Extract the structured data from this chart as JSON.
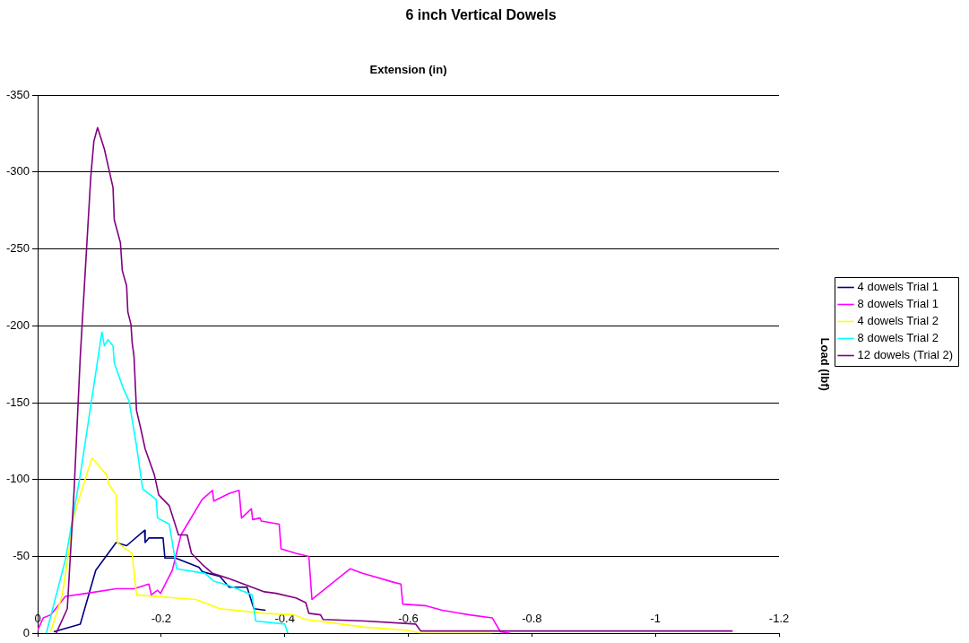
{
  "chart_data": {
    "type": "line",
    "title": "6 inch Vertical Dowels",
    "xlabel": "Extension (in)",
    "ylabel": "Load (lbf)",
    "xlim": [
      0,
      -1.2
    ],
    "xticks": [
      0,
      -0.2,
      -0.4,
      -0.6,
      -0.8,
      -1,
      -1.2
    ],
    "ylim": [
      0,
      -350
    ],
    "yticks": [
      0,
      -50,
      -100,
      -150,
      -200,
      -250,
      -300,
      -350
    ],
    "grid": "y",
    "legend": "right",
    "marker": "none",
    "line_style": "solid",
    "series": [
      {
        "name": "4 dowels Trial 1",
        "color": "#000080",
        "x": [
          -0.026,
          -0.069,
          -0.094,
          -0.127,
          -0.144,
          -0.173,
          -0.174,
          -0.18,
          -0.203,
          -0.206,
          -0.223,
          -0.261,
          -0.267,
          -0.295,
          -0.31,
          -0.339,
          -0.35,
          -0.369
        ],
        "values": [
          -1,
          -6,
          -41,
          -59,
          -57,
          -67,
          -59,
          -62,
          -62,
          -49,
          -49,
          -43,
          -40,
          -37,
          -30,
          -30,
          -16,
          -15
        ]
      },
      {
        "name": "8 dowels Trial 1",
        "color": "#ff00ff",
        "x": [
          0,
          -0.009,
          -0.021,
          -0.045,
          -0.079,
          -0.127,
          -0.156,
          -0.18,
          -0.184,
          -0.194,
          -0.199,
          -0.218,
          -0.232,
          -0.266,
          -0.283,
          -0.285,
          -0.31,
          -0.326,
          -0.33,
          -0.346,
          -0.348,
          -0.36,
          -0.362,
          -0.391,
          -0.394,
          -0.418,
          -0.439,
          -0.444,
          -0.506,
          -0.526,
          -0.578,
          -0.588,
          -0.591,
          -0.627,
          -0.655,
          -0.699,
          -0.736,
          -0.749,
          -0.765
        ],
        "values": [
          -2,
          -10,
          -12,
          -24,
          -26,
          -29,
          -29,
          -32,
          -25,
          -28,
          -26,
          -41,
          -64,
          -87,
          -93,
          -86,
          -91,
          -93,
          -75,
          -81,
          -74,
          -75,
          -73,
          -71,
          -55,
          -52,
          -50,
          -22,
          -42,
          -39,
          -33,
          -32,
          -19,
          -18,
          -15,
          -12,
          -10,
          -1,
          0
        ]
      },
      {
        "name": "4 dowels Trial 2",
        "color": "#ffff00",
        "x": [
          -0.021,
          -0.04,
          -0.059,
          -0.079,
          -0.088,
          -0.112,
          -0.115,
          -0.127,
          -0.129,
          -0.153,
          -0.16,
          -0.223,
          -0.256,
          -0.295,
          -0.367,
          -0.415,
          -0.434,
          -0.53,
          -0.598,
          -0.621,
          -0.736
        ],
        "values": [
          -1,
          -25,
          -77,
          -103,
          -114,
          -103,
          -97,
          -90,
          -59,
          -52,
          -25,
          -23,
          -22,
          -16,
          -13,
          -12,
          -9,
          -4,
          -2,
          0,
          0
        ]
      },
      {
        "name": "8 dowels Trial 2",
        "color": "#00ffff",
        "x": [
          -0.014,
          -0.045,
          -0.069,
          -0.098,
          -0.104,
          -0.108,
          -0.114,
          -0.122,
          -0.124,
          -0.138,
          -0.148,
          -0.16,
          -0.17,
          -0.192,
          -0.194,
          -0.213,
          -0.225,
          -0.271,
          -0.285,
          -0.31,
          -0.347,
          -0.353,
          -0.4,
          -0.405
        ],
        "values": [
          0,
          -48,
          -103,
          -180,
          -196,
          -187,
          -191,
          -187,
          -176,
          -160,
          -151,
          -122,
          -94,
          -87,
          -75,
          -71,
          -42,
          -39,
          -34,
          -31,
          -25,
          -8,
          -6,
          0
        ]
      },
      {
        "name": "12 dowels (Trial 2)",
        "color": "#800080",
        "x": [
          -0.03,
          -0.048,
          -0.059,
          -0.069,
          -0.079,
          -0.086,
          -0.091,
          -0.097,
          -0.108,
          -0.122,
          -0.124,
          -0.134,
          -0.137,
          -0.144,
          -0.146,
          -0.151,
          -0.153,
          -0.156,
          -0.16,
          -0.167,
          -0.174,
          -0.189,
          -0.196,
          -0.213,
          -0.228,
          -0.242,
          -0.249,
          -0.266,
          -0.283,
          -0.314,
          -0.367,
          -0.386,
          -0.418,
          -0.434,
          -0.439,
          -0.458,
          -0.462,
          -0.53,
          -0.612,
          -0.62,
          -1.125
        ],
        "values": [
          0,
          -16,
          -93,
          -180,
          -249,
          -297,
          -320,
          -329,
          -315,
          -290,
          -269,
          -254,
          -236,
          -226,
          -209,
          -201,
          -189,
          -180,
          -145,
          -133,
          -120,
          -103,
          -90,
          -83,
          -64,
          -64,
          -52,
          -45,
          -39,
          -35,
          -27,
          -26,
          -23,
          -20,
          -13,
          -12,
          -9,
          -8,
          -6,
          -1.5,
          -1.5
        ]
      }
    ]
  }
}
